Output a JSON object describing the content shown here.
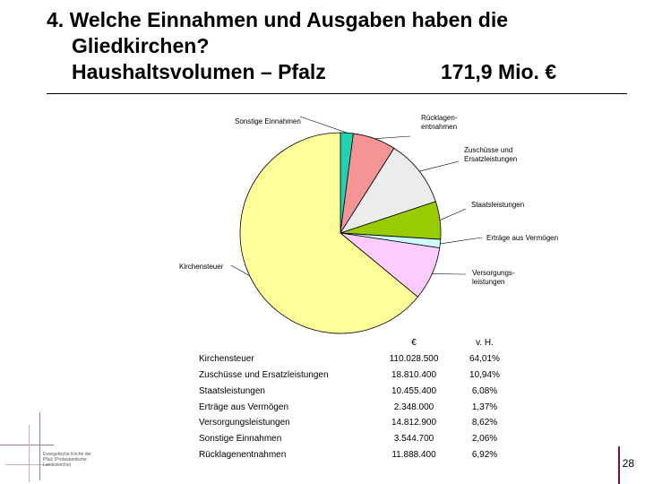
{
  "title": {
    "line1": "4. Welche Einnahmen und Ausgaben haben die",
    "line2": "Gliedkirchen?",
    "line3": "Haushaltsvolumen – Pfalz",
    "amount": "171,9 Mio. €"
  },
  "chart_data": {
    "type": "pie",
    "start_angle_deg": -90,
    "direction": "clockwise",
    "slices": [
      {
        "label": "Sonstige Einnahmen",
        "value": 3544700,
        "percent": 2.06,
        "color": "#1fd3b0"
      },
      {
        "label": "Rücklagen-\nentnahmen",
        "value": 11888400,
        "percent": 6.92,
        "color": "#f59494"
      },
      {
        "label": "Zuschüsse und\nErsatzleistungen",
        "value": 18810400,
        "percent": 10.94,
        "color": "#ececec"
      },
      {
        "label": "Staatsleistungen",
        "value": 10455400,
        "percent": 6.08,
        "color": "#99cc00"
      },
      {
        "label": "Erträge aus Vermögen",
        "value": 2348000,
        "percent": 1.37,
        "color": "#ccffff"
      },
      {
        "label": "Versorgungs-\nleistungen",
        "value": 14812900,
        "percent": 8.62,
        "color": "#ffccff"
      },
      {
        "label": "Kirchensteuer",
        "value": 110028500,
        "percent": 64.01,
        "color": "#ffff99"
      }
    ]
  },
  "table": {
    "col_eur": "€",
    "col_pct": "v. H.",
    "rows": [
      {
        "name": "Kirchensteuer",
        "eur": "110.028.500",
        "pct": "64,01%"
      },
      {
        "name": "Zuschüsse und Ersatzleistungen",
        "eur": "18.810.400",
        "pct": "10,94%"
      },
      {
        "name": "Staatsleistungen",
        "eur": "10.455.400",
        "pct": "6,08%"
      },
      {
        "name": "Erträge aus Vermögen",
        "eur": "2.348.000",
        "pct": "1,37%"
      },
      {
        "name": "Versorgungsleistungen",
        "eur": "14.812.900",
        "pct": "8,62%"
      },
      {
        "name": "Sonstige Einnahmen",
        "eur": "3.544.700",
        "pct": "2,06%"
      },
      {
        "name": "Rücklagenentnahmen",
        "eur": "11.888.400",
        "pct": "6,92%"
      }
    ]
  },
  "logo": {
    "text": "Evangelische Kirche der Pfalz (Protestantische Landeskirche)"
  },
  "page_number": "28"
}
